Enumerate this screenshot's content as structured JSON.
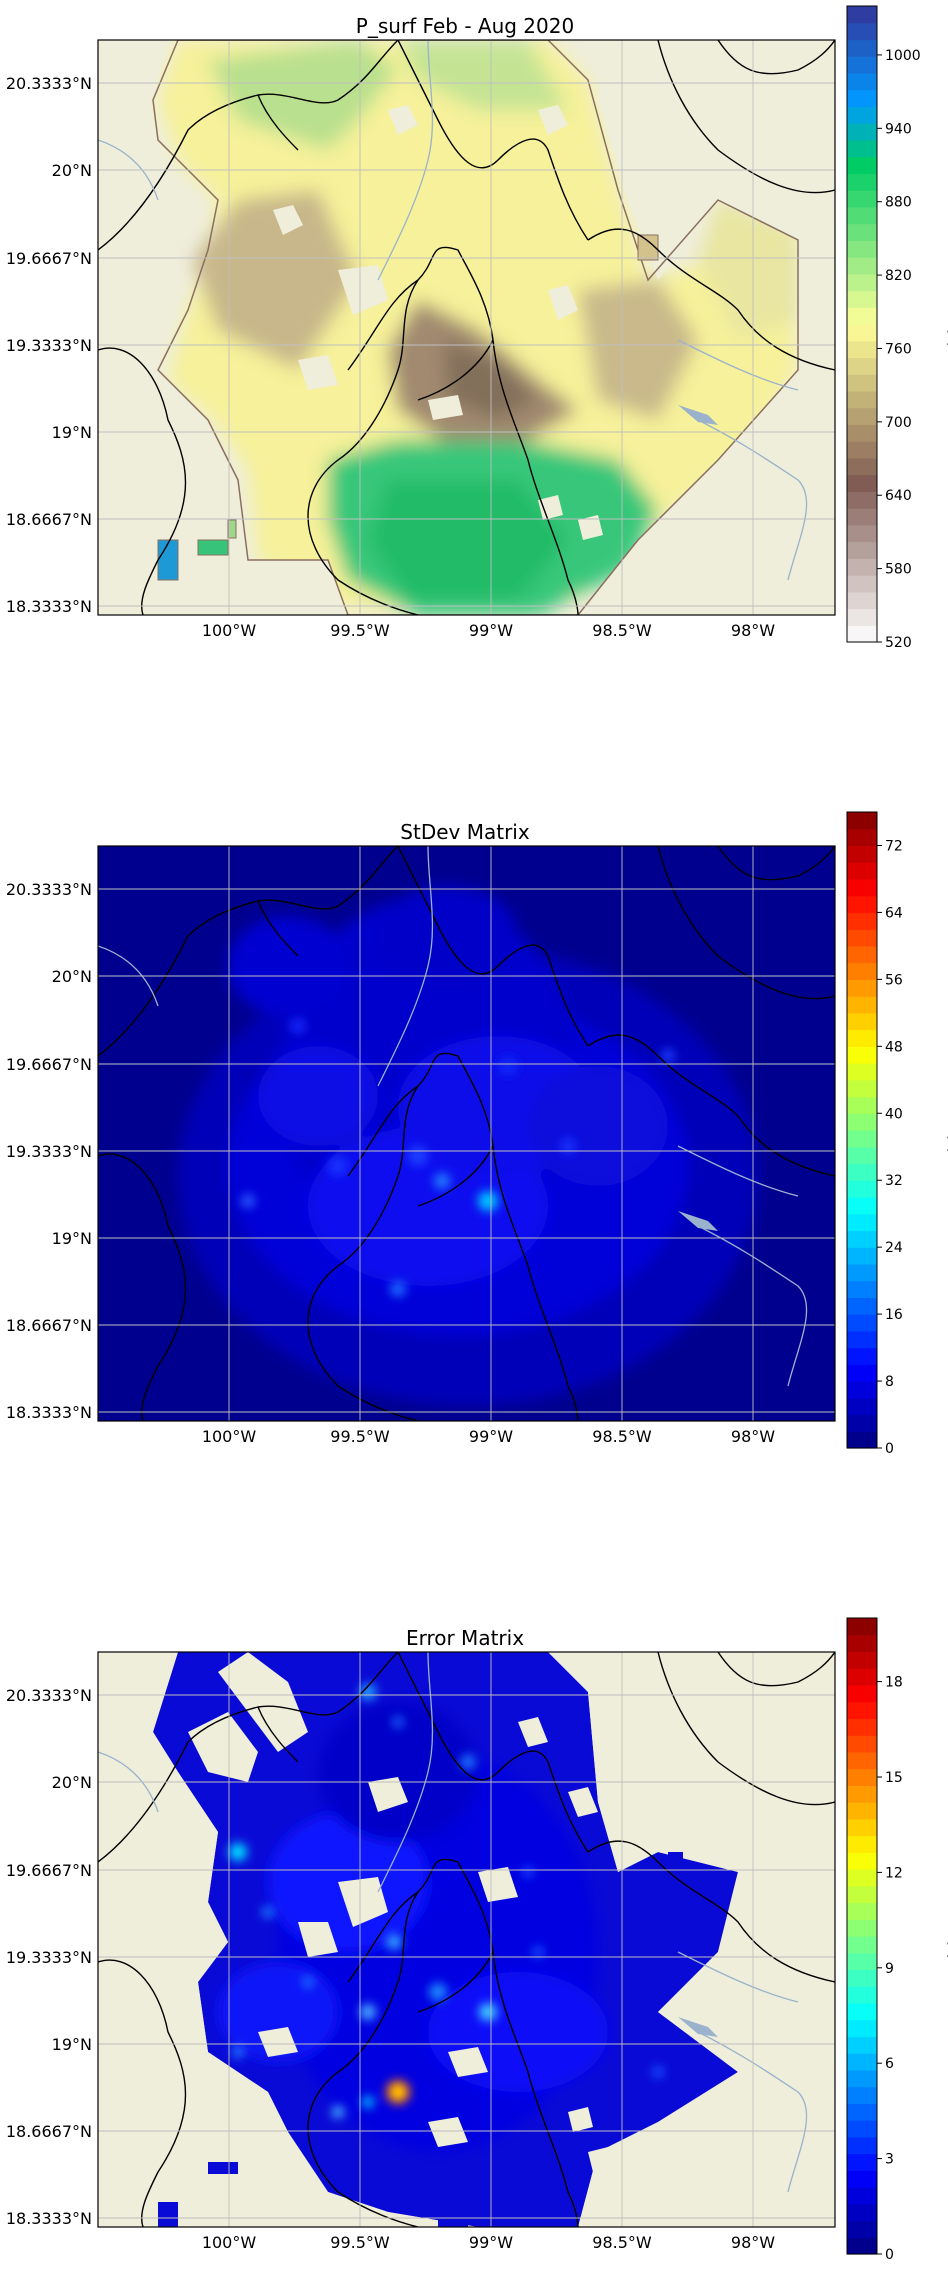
{
  "chart_data": [
    {
      "type": "heatmap",
      "title": "P_surf Feb - Aug 2020",
      "colorbar_label": "hbar",
      "colormap": "terrain",
      "colorbar_ticks": [
        "520",
        "580",
        "640",
        "700",
        "760",
        "820",
        "880",
        "940",
        "1000"
      ],
      "colorbar_range": [
        520,
        1040
      ],
      "x_ticks": [
        "100°W",
        "99.5°W",
        "99°W",
        "98.5°W",
        "98°W"
      ],
      "x_tick_values": [
        -100,
        -99.5,
        -99,
        -98.5,
        -98
      ],
      "y_ticks": [
        "20.3333°N",
        "20°N",
        "19.6667°N",
        "19.3333°N",
        "19°N",
        "18.6667°N",
        "18.3333°N"
      ],
      "y_tick_values": [
        20.3333,
        20,
        19.6667,
        19.3333,
        19,
        18.6667,
        18.3333
      ],
      "xlim": [
        -100.5,
        -97.7
      ],
      "ylim": [
        18.3,
        20.5
      ],
      "grid": true,
      "masked_outside_region": true,
      "field_points": [
        {
          "lon": -99.1,
          "lat": 19.35,
          "value": 690
        },
        {
          "lon": -98.95,
          "lat": 19.25,
          "value": 680
        },
        {
          "lon": -98.95,
          "lat": 19.55,
          "value": 770
        },
        {
          "lon": -98.6,
          "lat": 19.6,
          "value": 770
        },
        {
          "lon": -99.35,
          "lat": 19.9,
          "value": 790
        },
        {
          "lon": -99.0,
          "lat": 20.2,
          "value": 800
        },
        {
          "lon": -99.3,
          "lat": 20.35,
          "value": 830
        },
        {
          "lon": -98.8,
          "lat": 20.3,
          "value": 815
        },
        {
          "lon": -99.65,
          "lat": 19.35,
          "value": 740
        },
        {
          "lon": -98.5,
          "lat": 19.2,
          "value": 760
        },
        {
          "lon": -99.0,
          "lat": 18.8,
          "value": 890
        },
        {
          "lon": -99.3,
          "lat": 18.75,
          "value": 890
        },
        {
          "lon": -98.7,
          "lat": 18.7,
          "value": 880
        },
        {
          "lon": -99.8,
          "lat": 19.6,
          "value": 730
        },
        {
          "lon": -99.9,
          "lat": 20.2,
          "value": 760
        },
        {
          "lon": -99.1,
          "lat": 19.05,
          "value": 800
        },
        {
          "lon": -100.3,
          "lat": 18.35,
          "value": 930
        }
      ]
    },
    {
      "type": "heatmap",
      "title": "StDev Matrix",
      "colorbar_label": "hbar",
      "colormap": "jet",
      "colorbar_ticks": [
        "0",
        "8",
        "16",
        "24",
        "32",
        "40",
        "48",
        "56",
        "64",
        "72"
      ],
      "colorbar_range": [
        0,
        76
      ],
      "x_ticks": [
        "100°W",
        "99.5°W",
        "99°W",
        "98.5°W",
        "98°W"
      ],
      "x_tick_values": [
        -100,
        -99.5,
        -99,
        -98.5,
        -98
      ],
      "y_ticks": [
        "20.3333°N",
        "20°N",
        "19.6667°N",
        "19.3333°N",
        "19°N",
        "18.6667°N",
        "18.3333°N"
      ],
      "y_tick_values": [
        20.3333,
        20,
        19.6667,
        19.3333,
        19,
        18.6667,
        18.3333
      ],
      "xlim": [
        -100.5,
        -97.7
      ],
      "ylim": [
        18.3,
        20.5
      ],
      "grid": true,
      "masked_outside_region": false,
      "field_points": [
        {
          "lon": -99.0,
          "lat": 19.15,
          "value": 22
        },
        {
          "lon": -99.2,
          "lat": 19.2,
          "value": 18
        },
        {
          "lon": -99.37,
          "lat": 18.95,
          "value": 15
        },
        {
          "lon": -99.1,
          "lat": 19.3,
          "value": 12
        },
        {
          "lon": -98.7,
          "lat": 19.4,
          "value": 10
        },
        {
          "lon": -99.5,
          "lat": 19.3,
          "value": 10
        },
        {
          "lon": -99.6,
          "lat": 19.6,
          "value": 9
        },
        {
          "lon": -99.0,
          "lat": 19.8,
          "value": 9
        },
        {
          "lon": -99.2,
          "lat": 20.15,
          "value": 8
        },
        {
          "lon": -98.4,
          "lat": 19.5,
          "value": 8
        },
        {
          "lon": -98.8,
          "lat": 18.85,
          "value": 8
        },
        {
          "lon": -99.9,
          "lat": 19.15,
          "value": 11
        },
        {
          "lon": -99.5,
          "lat": 20.1,
          "value": 7
        }
      ]
    },
    {
      "type": "heatmap",
      "title": "Error Matrix",
      "colorbar_label": "hbar",
      "colormap": "jet",
      "colorbar_ticks": [
        "0",
        "3",
        "6",
        "9",
        "12",
        "15",
        "18"
      ],
      "colorbar_range": [
        0,
        20
      ],
      "x_ticks": [
        "100°W",
        "99.5°W",
        "99°W",
        "98.5°W",
        "98°W"
      ],
      "x_tick_values": [
        -100,
        -99.5,
        -99,
        -98.5,
        -98
      ],
      "y_ticks": [
        "20.3333°N",
        "20°N",
        "19.6667°N",
        "19.3333°N",
        "19°N",
        "18.6667°N",
        "18.3333°N"
      ],
      "y_tick_values": [
        20.3333,
        20,
        19.6667,
        19.3333,
        19,
        18.6667,
        18.3333
      ],
      "xlim": [
        -100.5,
        -97.7
      ],
      "ylim": [
        18.3,
        20.5
      ],
      "grid": true,
      "masked_outside_region": true,
      "field_points": [
        {
          "lon": -99.37,
          "lat": 18.8,
          "value": 17
        },
        {
          "lon": -99.5,
          "lat": 18.7,
          "value": 8
        },
        {
          "lon": -99.45,
          "lat": 19.2,
          "value": 7
        },
        {
          "lon": -99.65,
          "lat": 19.25,
          "value": 7
        },
        {
          "lon": -99.0,
          "lat": 19.15,
          "value": 8
        },
        {
          "lon": -99.2,
          "lat": 19.25,
          "value": 7
        },
        {
          "lon": -99.5,
          "lat": 19.45,
          "value": 7
        },
        {
          "lon": -100.0,
          "lat": 19.95,
          "value": 9
        },
        {
          "lon": -99.9,
          "lat": 19.55,
          "value": 6
        },
        {
          "lon": -99.45,
          "lat": 20.3,
          "value": 8
        },
        {
          "lon": -99.0,
          "lat": 20.05,
          "value": 6
        },
        {
          "lon": -98.6,
          "lat": 19.3,
          "value": 3
        },
        {
          "lon": -98.8,
          "lat": 18.85,
          "value": 4
        },
        {
          "lon": -99.2,
          "lat": 19.8,
          "value": 3
        },
        {
          "lon": -98.95,
          "lat": 19.55,
          "value": 3
        },
        {
          "lon": -98.4,
          "lat": 18.9,
          "value": 4
        },
        {
          "lon": -100.05,
          "lat": 19.0,
          "value": 4
        }
      ]
    }
  ],
  "map_colors": {
    "land": "#efeedb",
    "border": "#000000",
    "river": "#9ab2cc",
    "grid": "#bfbfbf",
    "contour_edge": "#8a6f5e"
  }
}
